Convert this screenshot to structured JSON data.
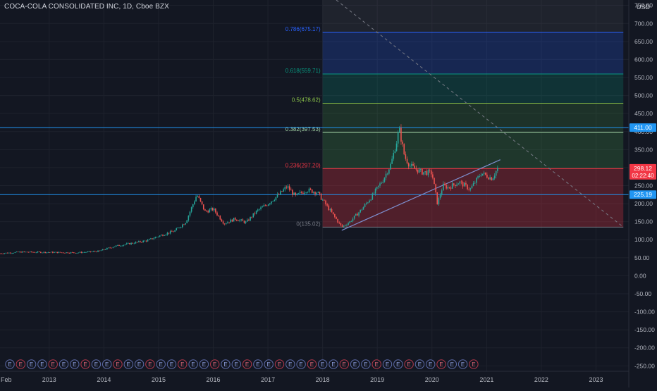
{
  "header": {
    "title": "COCA-COLA CONSOLIDATED INC, 1D, Cboe BZX",
    "currency": "USD"
  },
  "colors": {
    "background": "#131722",
    "grid": "#1e222d",
    "axis_text": "#b2b5be",
    "up": "#26a69a",
    "down": "#ef5350",
    "hline": "#2196f3",
    "price_tag": "#f23645"
  },
  "chart_data": {
    "type": "line",
    "title": "COCA-COLA CONSOLIDATED INC, 1D, Cboe BZX",
    "xlabel": "",
    "ylabel": "",
    "ylim": [
      -265,
      765
    ],
    "xlim": [
      2012.1,
      2023.6
    ],
    "x_ticks": [
      "Feb",
      "2013",
      "2014",
      "2015",
      "2016",
      "2017",
      "2018",
      "2019",
      "2020",
      "2021",
      "2022",
      "2023"
    ],
    "y_ticks": [
      750,
      700,
      650,
      600,
      550,
      500,
      450,
      400,
      350,
      300,
      250,
      200,
      150,
      100,
      50,
      0,
      -50,
      -100,
      -150,
      -200,
      -250
    ],
    "y_tick_labels": [
      "750.00",
      "700.00",
      "650.00",
      "600.00",
      "550.00",
      "500.00",
      "450.00",
      "400.00",
      "350.00",
      "300.00",
      "250.00",
      "200.00",
      "150.00",
      "100.00",
      "50.00",
      "0.00",
      "-50.00",
      "-100.00",
      "-150.00",
      "-200.00",
      "-250.00"
    ],
    "grid": true,
    "series": [
      {
        "x": [
          2012.1,
          2012.5,
          2013.0,
          2013.5,
          2013.9,
          2014.2,
          2014.5,
          2014.8,
          2015.0,
          2015.3,
          2015.5,
          2015.7,
          2015.85,
          2016.0,
          2016.2,
          2016.4,
          2016.6,
          2016.8,
          2017.0,
          2017.2,
          2017.35,
          2017.5,
          2017.7,
          2017.9,
          2018.0,
          2018.15,
          2018.35,
          2018.5,
          2018.7,
          2018.9,
          2019.1,
          2019.25,
          2019.35,
          2019.4,
          2019.5,
          2019.6,
          2019.8,
          2020.0,
          2020.1,
          2020.2,
          2020.3,
          2020.5,
          2020.7,
          2020.9,
          2021.1,
          2021.2
        ],
        "values": [
          62,
          66,
          65,
          64,
          68,
          82,
          90,
          98,
          110,
          125,
          150,
          225,
          178,
          185,
          145,
          158,
          148,
          180,
          200,
          225,
          248,
          220,
          238,
          232,
          210,
          178,
          135,
          150,
          182,
          220,
          265,
          310,
          370,
          408,
          330,
          305,
          288,
          285,
          200,
          250,
          245,
          260,
          240,
          285,
          270,
          298
        ]
      }
    ],
    "fib_levels": [
      {
        "label": "0.786(675.17)",
        "value": 675.17,
        "color": "#2962ff"
      },
      {
        "label": "0.618(559.71)",
        "value": 559.71,
        "color": "#089981"
      },
      {
        "label": "0.5(478.62)",
        "value": 478.62,
        "color": "#8bc34a"
      },
      {
        "label": "0.382(397.53)",
        "value": 397.53,
        "color": "#a5d6a7"
      },
      {
        "label": "0.236(297.20)",
        "value": 297.2,
        "color": "#f23645"
      },
      {
        "label": "0(135.02)",
        "value": 135.02,
        "color": "#787b86"
      }
    ],
    "fib_range": {
      "x_start": 2018.0,
      "x_end": 2023.5,
      "top_value": 765
    },
    "horizontal_lines": [
      {
        "value": 411.0,
        "label": "411.00"
      },
      {
        "value": 225.19,
        "label": "225.19"
      }
    ],
    "last_price": {
      "value": 298.12,
      "label": "298.12",
      "countdown": "02:22:40"
    },
    "trendline": {
      "x": [
        2018.35,
        2021.25
      ],
      "y": [
        126,
        322
      ]
    },
    "dashed_line": {
      "x": [
        2018.25,
        2023.5
      ],
      "y": [
        765,
        135
      ]
    },
    "events": {
      "count": 44,
      "label": "E"
    }
  }
}
